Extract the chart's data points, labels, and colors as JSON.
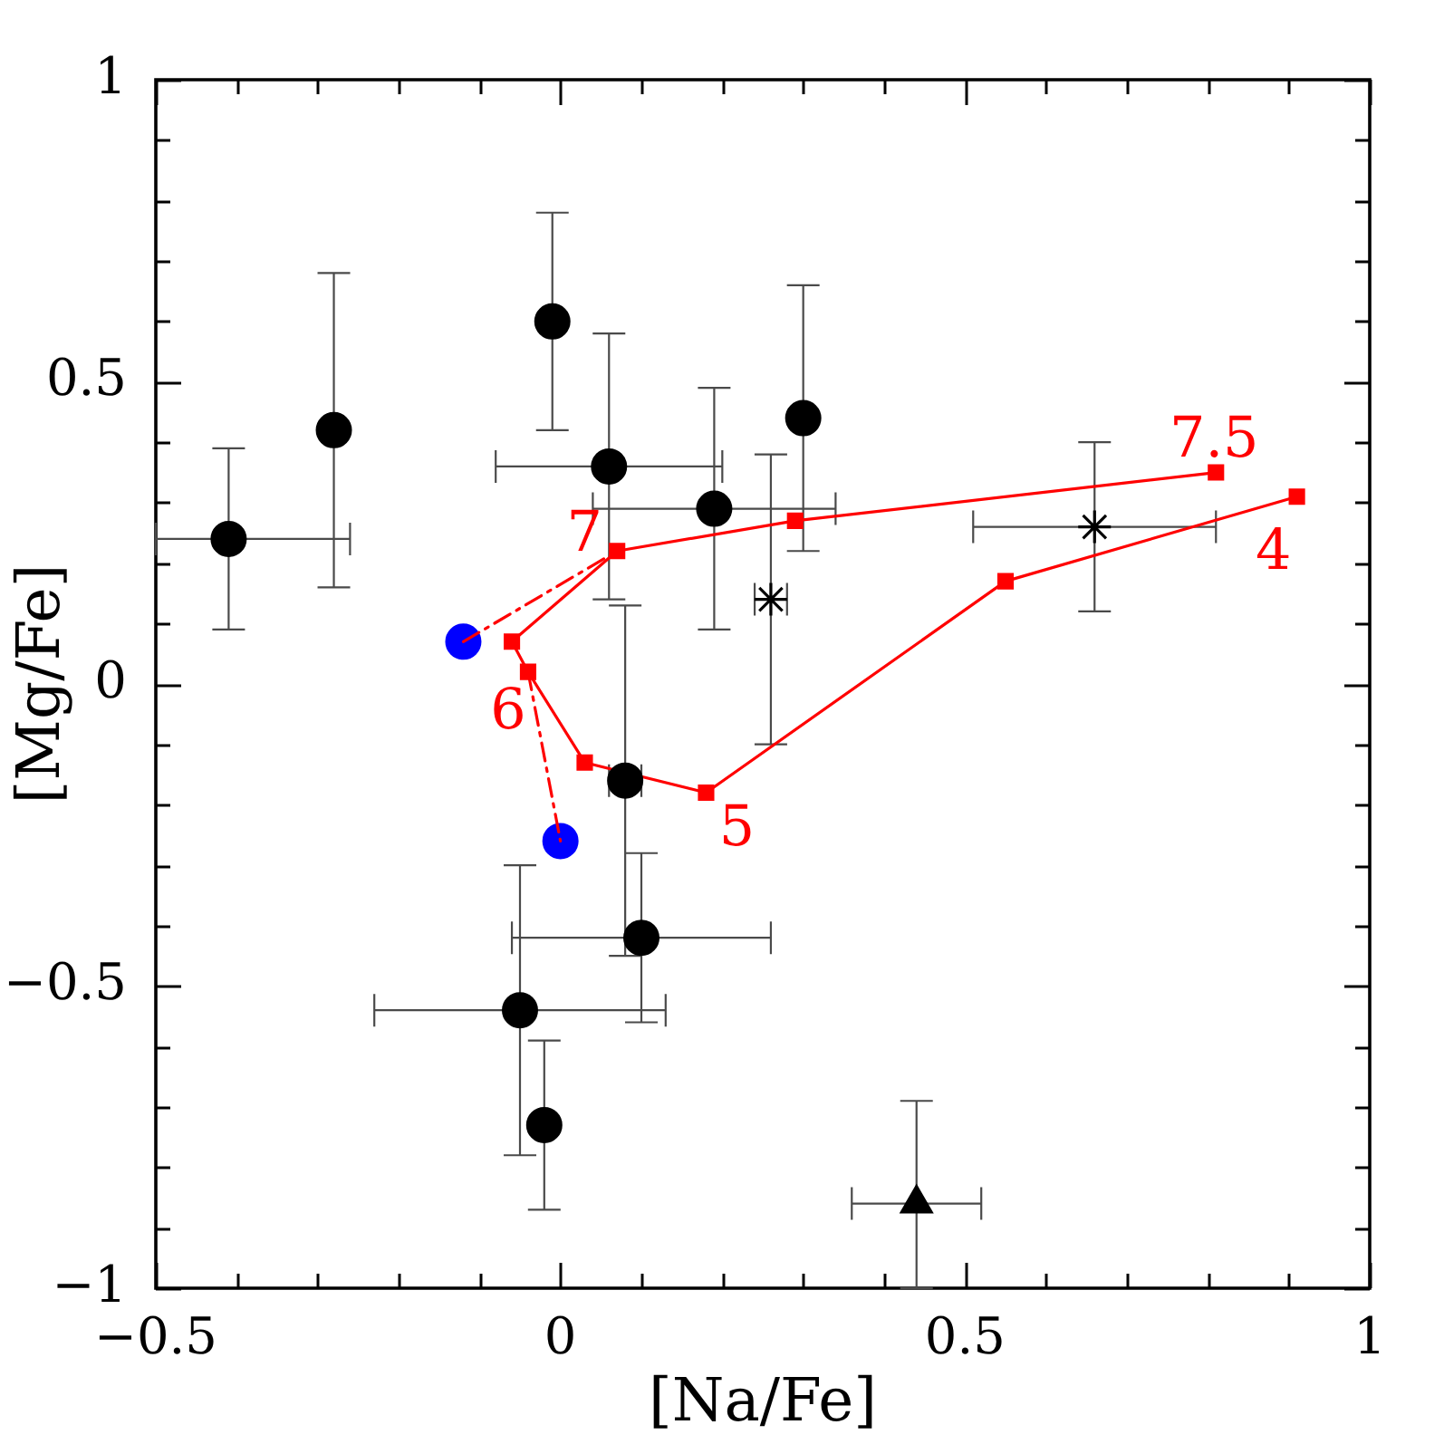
{
  "chart_data": {
    "type": "scatter",
    "xlabel": "[Na/Fe]",
    "ylabel": "[Mg/Fe]",
    "xlim": [
      -0.5,
      1
    ],
    "ylim": [
      -1,
      1
    ],
    "xticks": [
      {
        "value": -0.5,
        "label": "−0.5"
      },
      {
        "value": -0.4,
        "label": null
      },
      {
        "value": -0.3,
        "label": null
      },
      {
        "value": -0.2,
        "label": null
      },
      {
        "value": -0.1,
        "label": null
      },
      0,
      {
        "value": 0.1,
        "label": null
      },
      {
        "value": 0.2,
        "label": null
      },
      {
        "value": 0.3,
        "label": null
      },
      {
        "value": 0.4,
        "label": null
      },
      0.5,
      {
        "value": 0.6,
        "label": null
      },
      {
        "value": 0.7,
        "label": null
      },
      {
        "value": 0.8,
        "label": null
      },
      {
        "value": 0.9,
        "label": null
      },
      1
    ],
    "yticks": [
      {
        "value": -1,
        "label": "−1"
      },
      {
        "value": -0.9,
        "label": null
      },
      {
        "value": -0.8,
        "label": null
      },
      {
        "value": -0.7,
        "label": null
      },
      {
        "value": -0.6,
        "label": null
      },
      {
        "value": -0.5,
        "label": "−0.5"
      },
      {
        "value": -0.4,
        "label": null
      },
      {
        "value": -0.3,
        "label": null
      },
      {
        "value": -0.2,
        "label": null
      },
      {
        "value": -0.1,
        "label": null
      },
      0,
      {
        "value": 0.1,
        "label": null
      },
      {
        "value": 0.2,
        "label": null
      },
      {
        "value": 0.3,
        "label": null
      },
      {
        "value": 0.4,
        "label": null
      },
      0.5,
      {
        "value": 0.6,
        "label": null
      },
      {
        "value": 0.7,
        "label": null
      },
      {
        "value": 0.8,
        "label": null
      },
      {
        "value": 0.9,
        "label": null
      },
      1
    ],
    "series": [
      {
        "marker": "circle",
        "color": "#000000",
        "x": [
          -0.41,
          -0.28,
          -0.01,
          0.06,
          0.19,
          0.3
        ],
        "values": [
          0.24,
          0.42,
          0.6,
          0.36,
          0.29,
          0.44
        ],
        "errors": [
          0.15,
          0.26,
          0.18,
          0.22,
          0.2,
          0.22
        ],
        "xerrors": [
          [
            -0.5,
            -0.26
          ],
          null,
          null,
          0.14,
          0.15,
          null
        ]
      },
      {
        "marker": "cross",
        "color": "#000000",
        "x": [
          0.26,
          0.66
        ],
        "values": [
          0.14,
          0.26
        ],
        "errors": [
          0.24,
          0.14
        ],
        "xerrors": [
          0.02,
          0.15
        ]
      },
      {
        "marker": "circle",
        "color": "#000000",
        "x": [
          0.08,
          0.1,
          -0.05,
          -0.02
        ],
        "values": [
          -0.16,
          -0.42,
          -0.54,
          -0.73
        ],
        "errors": [
          0.29,
          0.14,
          0.24,
          0.14
        ],
        "xerrors": [
          0.02,
          0.16,
          0.18,
          null
        ]
      },
      {
        "marker": "triangle",
        "color": "#000000",
        "x": [
          0.44
        ],
        "values": [
          -0.86
        ],
        "errors": [
          [
            -1,
            -0.69
          ]
        ],
        "xerrors": [
          0.08
        ]
      },
      {
        "type": "line",
        "line_style": "dashed",
        "color": "#ff0000",
        "x": [
          -0.12,
          0.07
        ],
        "values": [
          0.07,
          0.22
        ]
      },
      {
        "type": "line",
        "line_style": "dashed",
        "color": "#ff0000",
        "x": [
          -0.04,
          0.0
        ],
        "values": [
          0.02,
          -0.26
        ]
      },
      {
        "type": "line",
        "marker": "square",
        "line_style": "solid",
        "color": "#ff0000",
        "x": [
          0.91,
          0.55,
          0.18,
          0.03,
          -0.04,
          -0.06,
          0.07,
          0.29,
          0.81
        ],
        "values": [
          0.31,
          0.17,
          -0.18,
          -0.13,
          0.02,
          0.07,
          0.22,
          0.27,
          0.35
        ]
      },
      {
        "marker": "circle",
        "color": "#0000ff",
        "x": [
          -0.12,
          0.0
        ],
        "values": [
          0.07,
          -0.26
        ]
      }
    ],
    "annotations": [
      {
        "text": "4",
        "x": 0.91,
        "y": 0.31
      },
      {
        "text": "5",
        "x": 0.18,
        "y": -0.18
      },
      {
        "text": "6",
        "x": -0.04,
        "y": 0.02
      },
      {
        "text": "7",
        "x": 0.07,
        "y": 0.22
      },
      {
        "text": "7.5",
        "x": 0.81,
        "y": 0.35
      }
    ]
  }
}
